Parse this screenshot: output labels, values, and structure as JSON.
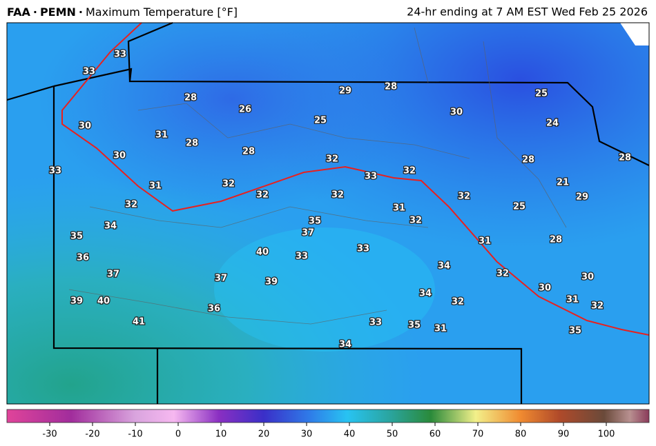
{
  "header": {
    "title_parts": [
      "FAA",
      "PEMN",
      "Maximum Temperature [°F]"
    ],
    "separator": "·",
    "valid": "24-hr ending at 7 AM EST Wed Feb 25 2026"
  },
  "map": {
    "station_values": [
      33,
      33,
      28,
      26,
      29,
      28,
      30,
      25,
      24,
      30,
      31,
      28,
      25,
      28,
      32,
      33,
      32,
      28,
      28,
      33,
      30,
      31,
      32,
      32,
      32,
      32,
      21,
      29,
      32,
      31,
      32,
      25,
      34,
      35,
      37,
      35,
      31,
      28,
      40,
      33,
      33,
      36,
      34,
      37,
      37,
      39,
      32,
      30,
      30,
      39,
      40,
      34,
      32,
      31,
      32,
      36,
      41,
      33,
      35,
      31,
      35,
      34
    ]
  },
  "colorbar": {
    "range": [
      -40,
      110
    ],
    "ticks": [
      -30,
      -20,
      -10,
      0,
      10,
      20,
      30,
      40,
      50,
      60,
      70,
      80,
      90,
      100
    ]
  }
}
